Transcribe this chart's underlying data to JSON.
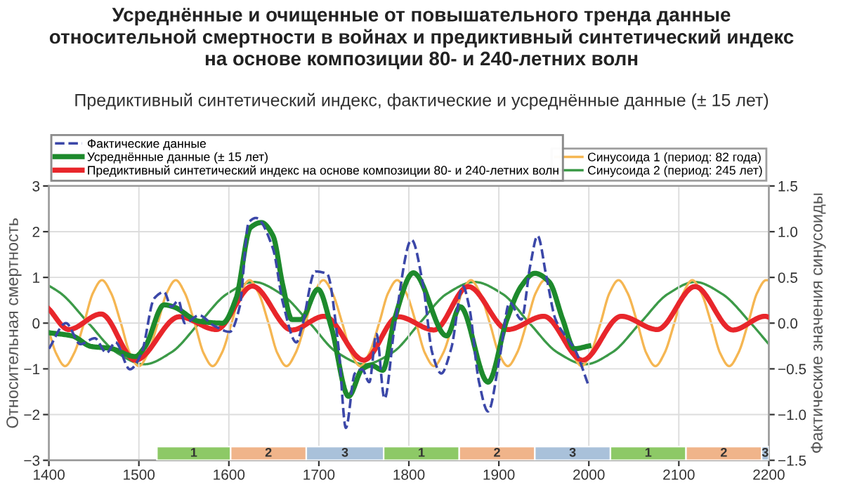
{
  "chart_data": {
    "type": "line",
    "title": "Усреднённые и очищенные от повышательного тренда данные\nотносительной смертности в войнах и предиктивный синтетический индекс\nна основе композиции 80- и 240-летних волн",
    "subtitle": "Предиктивный синтетический индекс, фактические и усреднённые данные (± 15 лет)",
    "ylabel": "Относительная смертность",
    "y2label": "Фактические значения синусоиды",
    "xlim": [
      1400,
      2200
    ],
    "xticks": [
      1400,
      1500,
      1600,
      1700,
      1800,
      1900,
      2000,
      2100,
      2200
    ],
    "ylim": [
      -3,
      3
    ],
    "yticks": [
      {
        "value": -3,
        "label": "−3"
      },
      {
        "value": -2,
        "label": "−2"
      },
      {
        "value": -1,
        "label": "−1"
      },
      0,
      1,
      2,
      3
    ],
    "y2lim": [
      -1.5,
      1.5
    ],
    "y2ticks": [
      {
        "value": -1.5,
        "label": "−1.5"
      },
      {
        "value": -1,
        "label": "−1.0"
      },
      {
        "value": -0.5,
        "label": "−0.5"
      },
      {
        "value": 0,
        "label": "0.0"
      },
      0.5,
      {
        "value": 1,
        "label": "1.0"
      },
      1.5
    ],
    "grid": true,
    "legend": "top",
    "series": [
      {
        "name": "Фактические данные",
        "color": "#3b47a8",
        "line_style": "dashed",
        "x": [
          1400,
          1419,
          1435,
          1451,
          1464,
          1474,
          1490,
          1503,
          1517,
          1528,
          1536,
          1544,
          1551,
          1567,
          1583,
          1601,
          1612,
          1622,
          1630,
          1649,
          1660,
          1675,
          1681,
          1696,
          1709,
          1722,
          1730,
          1740,
          1748,
          1756,
          1764,
          1773,
          1784,
          1803,
          1816,
          1826,
          1836,
          1847,
          1860,
          1867,
          1878,
          1888,
          1901,
          1912,
          1925,
          1935,
          1943,
          1953,
          1963,
          1974,
          1984,
          2000
        ],
        "values": [
          -0.56,
          0.0,
          -0.46,
          -0.33,
          -0.65,
          -0.42,
          -1.01,
          -0.65,
          0.54,
          0.68,
          0.36,
          0.49,
          0.0,
          0.17,
          -0.05,
          -0.19,
          0.36,
          2.2,
          2.3,
          1.63,
          0.45,
          -0.42,
          -0.1,
          1.13,
          1.08,
          -0.56,
          -2.29,
          -1.1,
          -1.01,
          -1.29,
          -0.24,
          -1.65,
          -0.1,
          1.82,
          0.81,
          -0.65,
          -1.1,
          -0.56,
          0.81,
          0.36,
          -1.29,
          -1.93,
          -0.74,
          0.45,
          0.08,
          1.27,
          1.91,
          1.0,
          0.08,
          -0.28,
          -0.56,
          -1.38
        ]
      },
      {
        "name": "Усреднённые данные (± 15 лет)",
        "color": "#1d8a2c",
        "x": [
          1400,
          1426,
          1447,
          1468,
          1496,
          1507,
          1528,
          1538,
          1567,
          1593,
          1608,
          1624,
          1636,
          1649,
          1660,
          1670,
          1680,
          1699,
          1714,
          1733,
          1748,
          1758,
          1771,
          1784,
          1805,
          1842,
          1857,
          1888,
          1909,
          1925,
          1940,
          1956,
          1971,
          1984,
          2000
        ],
        "values": [
          -0.21,
          -0.28,
          -0.51,
          -0.55,
          -0.73,
          -0.51,
          0.4,
          0.36,
          0.04,
          0.0,
          0.54,
          2.09,
          2.2,
          1.91,
          0.82,
          0.08,
          0.08,
          0.74,
          -0.1,
          -1.6,
          -1.01,
          -0.92,
          -1.03,
          0.08,
          1.1,
          -0.28,
          0.36,
          -1.29,
          0.08,
          0.81,
          1.09,
          0.9,
          0.08,
          -0.56,
          -0.5
        ]
      },
      {
        "name": "Предиктивный синтетический индекс на основе композиции 80- и 240-летних волн",
        "color": "#e8262b",
        "x": [
          1400,
          1422,
          1458,
          1496,
          1545,
          1586,
          1626,
          1670,
          1706,
          1750,
          1788,
          1828,
          1866,
          1910,
          1950,
          1993,
          2036,
          2076,
          2118,
          2160,
          2196,
          2200
        ],
        "values": [
          0.31,
          -0.14,
          0.2,
          -0.81,
          0.14,
          -0.14,
          0.81,
          -0.15,
          0.15,
          -0.81,
          0.14,
          -0.15,
          0.8,
          -0.14,
          0.15,
          -0.81,
          0.15,
          -0.14,
          0.8,
          -0.15,
          0.15,
          0.13
        ]
      },
      {
        "name": "Синусоида 1 (период: 82 года)",
        "color": "#f5b652",
        "axis": "y2",
        "x": [
          1400,
          1408,
          1418,
          1428,
          1439,
          1449,
          1459,
          1469,
          1480,
          1490,
          1500,
          1510,
          1521,
          1531,
          1541,
          1551,
          1562,
          1572,
          1582,
          1592,
          1603,
          1613,
          1623,
          1633,
          1644,
          1654,
          1664,
          1674,
          1685,
          1695,
          1705,
          1715,
          1726,
          1736,
          1746,
          1756,
          1767,
          1777,
          1787,
          1797,
          1808,
          1818,
          1828,
          1838,
          1849,
          1859,
          1869,
          1879,
          1890,
          1900,
          1910,
          1920,
          1931,
          1941,
          1951,
          1961,
          1972,
          1982,
          1992,
          2002,
          2013,
          2023,
          2033,
          2043,
          2054,
          2064,
          2074,
          2084,
          2095,
          2105,
          2115,
          2125,
          2136,
          2146,
          2156,
          2166,
          2177,
          2187,
          2197,
          2200
        ],
        "values": [
          -0.09,
          -0.33,
          -0.47,
          -0.33,
          0,
          0.33,
          0.47,
          0.33,
          0,
          -0.33,
          -0.47,
          -0.33,
          0,
          0.33,
          0.47,
          0.33,
          0,
          -0.33,
          -0.47,
          -0.33,
          0,
          0.33,
          0.47,
          0.33,
          0,
          -0.33,
          -0.47,
          -0.33,
          0,
          0.33,
          0.47,
          0.33,
          0,
          -0.33,
          -0.47,
          -0.33,
          0,
          0.33,
          0.47,
          0.33,
          0,
          -0.33,
          -0.47,
          -0.33,
          0,
          0.33,
          0.47,
          0.33,
          0,
          -0.33,
          -0.47,
          -0.33,
          0,
          0.33,
          0.47,
          0.33,
          0,
          -0.33,
          -0.47,
          -0.33,
          0,
          0.33,
          0.47,
          0.33,
          0,
          -0.33,
          -0.47,
          -0.33,
          0,
          0.33,
          0.47,
          0.33,
          0,
          -0.33,
          -0.47,
          -0.33,
          0,
          0.33,
          0.47,
          0.47
        ]
      },
      {
        "name": "Синусоида 2 (период: 245 лет)",
        "color": "#3c9a48",
        "axis": "y2",
        "x": [
          1400,
          1414,
          1444,
          1475,
          1506,
          1536,
          1567,
          1598,
          1628,
          1658,
          1690,
          1720,
          1751,
          1782,
          1812,
          1842,
          1873,
          1904,
          1934,
          1965,
          1996,
          2026,
          2057,
          2088,
          2118,
          2148,
          2180,
          2200
        ],
        "values": [
          0.41,
          0.32,
          0,
          -0.32,
          -0.45,
          -0.32,
          0,
          0.32,
          0.45,
          0.32,
          0,
          -0.32,
          -0.45,
          -0.32,
          0,
          0.32,
          0.45,
          0.32,
          0,
          -0.32,
          -0.45,
          -0.32,
          0,
          0.32,
          0.45,
          0.32,
          0,
          -0.23
        ]
      }
    ],
    "bands": [
      {
        "axis": "x",
        "from": 1520,
        "to": 1602,
        "label": "1",
        "color": "#8dc966"
      },
      {
        "axis": "x",
        "from": 1602,
        "to": 1686,
        "label": "2",
        "color": "#f0b48a"
      },
      {
        "axis": "x",
        "from": 1686,
        "to": 1772,
        "label": "3",
        "color": "#a9c1da"
      },
      {
        "axis": "x",
        "from": 1772,
        "to": 1856,
        "label": "1",
        "color": "#8dc966"
      },
      {
        "axis": "x",
        "from": 1856,
        "to": 1940,
        "label": "2",
        "color": "#f0b48a"
      },
      {
        "axis": "x",
        "from": 1940,
        "to": 2024,
        "label": "3",
        "color": "#a9c1da"
      },
      {
        "axis": "x",
        "from": 2024,
        "to": 2108,
        "label": "1",
        "color": "#8dc966"
      },
      {
        "axis": "x",
        "from": 2108,
        "to": 2192,
        "label": "2",
        "color": "#f0b48a"
      },
      {
        "axis": "x",
        "from": 2192,
        "to": 2200,
        "label": "3",
        "color": "#a9c1da"
      }
    ]
  }
}
